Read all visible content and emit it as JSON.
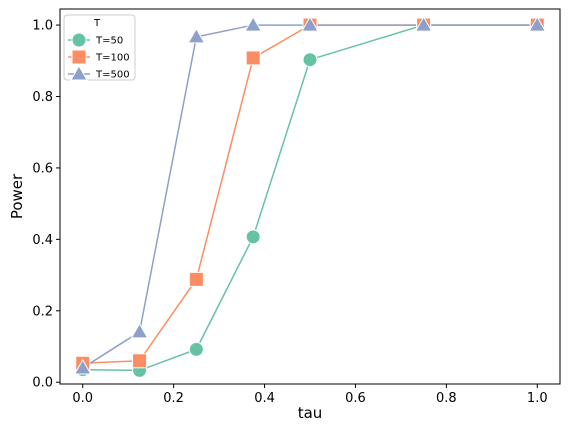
{
  "chart_data": {
    "type": "line",
    "xlabel": "tau",
    "ylabel": "Power",
    "xlim": [
      -0.05,
      1.05
    ],
    "ylim": [
      -0.005,
      1.045
    ],
    "xticks": [
      0.0,
      0.2,
      0.4,
      0.6,
      0.8,
      1.0
    ],
    "xtick_labels": [
      "0.0",
      "0.2",
      "0.4",
      "0.6",
      "0.8",
      "1.0"
    ],
    "yticks": [
      0.0,
      0.2,
      0.4,
      0.6,
      0.8,
      1.0
    ],
    "ytick_labels": [
      "0.0",
      "0.2",
      "0.4",
      "0.6",
      "0.8",
      "1.0"
    ],
    "grid": false,
    "legend": {
      "title": "T",
      "placement": "upper-left"
    },
    "x": [
      0.0,
      0.125,
      0.25,
      0.375,
      0.5,
      0.75,
      1.0
    ],
    "series": [
      {
        "name": "T=50",
        "marker": "circle",
        "color": "#66c2a5",
        "values": [
          0.035,
          0.033,
          0.092,
          0.407,
          0.903,
          1.0,
          1.0
        ]
      },
      {
        "name": "T=100",
        "marker": "square",
        "color": "#fc8d62",
        "values": [
          0.053,
          0.06,
          0.288,
          0.908,
          1.0,
          1.0,
          1.0
        ]
      },
      {
        "name": "T=500",
        "marker": "triangle",
        "color": "#8da0cb",
        "values": [
          0.04,
          0.141,
          0.967,
          1.0,
          1.0,
          1.0,
          1.0
        ]
      }
    ]
  }
}
